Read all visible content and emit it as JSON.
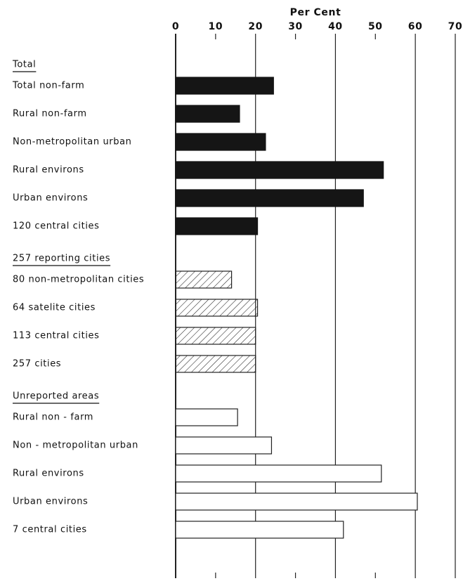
{
  "chart_data": {
    "type": "bar",
    "orientation": "horizontal",
    "xlabel": "Per Cent",
    "xlim": [
      0,
      70
    ],
    "xticks": [
      0,
      10,
      20,
      30,
      40,
      50,
      60,
      70
    ],
    "grid": true,
    "groups": [
      {
        "name": "Total",
        "fill": "solid",
        "color": "#151515",
        "categories": [
          "Total non-farm",
          "Rural non-farm",
          "Non-metropolitan urban",
          "Rural environs",
          "Urban environs",
          "120 central cities"
        ],
        "values": [
          24.5,
          16,
          22.5,
          52,
          47,
          20.5
        ]
      },
      {
        "name": "257 reporting cities",
        "fill": "hatched",
        "color": "#222222",
        "categories": [
          "80 non-metropolitan cities",
          "64 satelite cities",
          "113 central cities",
          "257 cities"
        ],
        "values": [
          14,
          20.5,
          20,
          20
        ]
      },
      {
        "name": "Unreported areas",
        "fill": "outline",
        "color": "#222222",
        "categories": [
          "Rural non - farm",
          "Non - metropolitan urban",
          "Rural environs",
          "Urban environs",
          "7 central cities"
        ],
        "values": [
          15.5,
          24,
          51.5,
          60.5,
          42
        ]
      }
    ]
  }
}
